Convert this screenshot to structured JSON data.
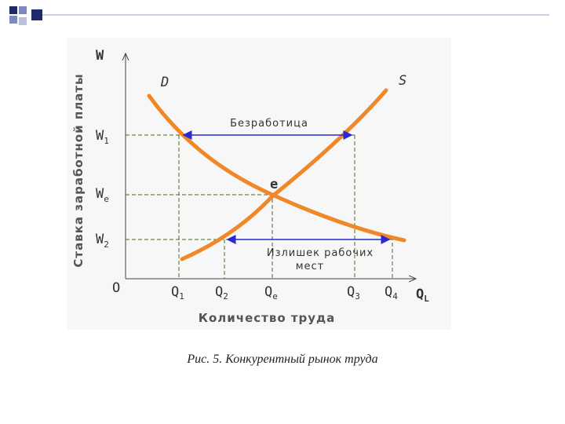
{
  "diagram": {
    "axes": {
      "y_label": "W",
      "x_label": "Q",
      "x_label_sub": "L",
      "origin": "O",
      "y_title": "Ставка заработной платы",
      "x_title": "Количество труда"
    },
    "curves": {
      "demand": "D",
      "supply": "S",
      "equilibrium": "e"
    },
    "y_ticks": [
      {
        "base": "W",
        "sub": "1"
      },
      {
        "base": "W",
        "sub": "e"
      },
      {
        "base": "W",
        "sub": "2"
      }
    ],
    "x_ticks": [
      {
        "base": "Q",
        "sub": "1"
      },
      {
        "base": "Q",
        "sub": "2"
      },
      {
        "base": "Q",
        "sub": "e"
      },
      {
        "base": "Q",
        "sub": "3"
      },
      {
        "base": "Q",
        "sub": "4"
      }
    ],
    "annotations": {
      "unemployment": "Безработица",
      "surplus": [
        "Излишек рабочих",
        "мест"
      ]
    }
  },
  "caption": "Рис. 5. Конкурентный рынок труда"
}
